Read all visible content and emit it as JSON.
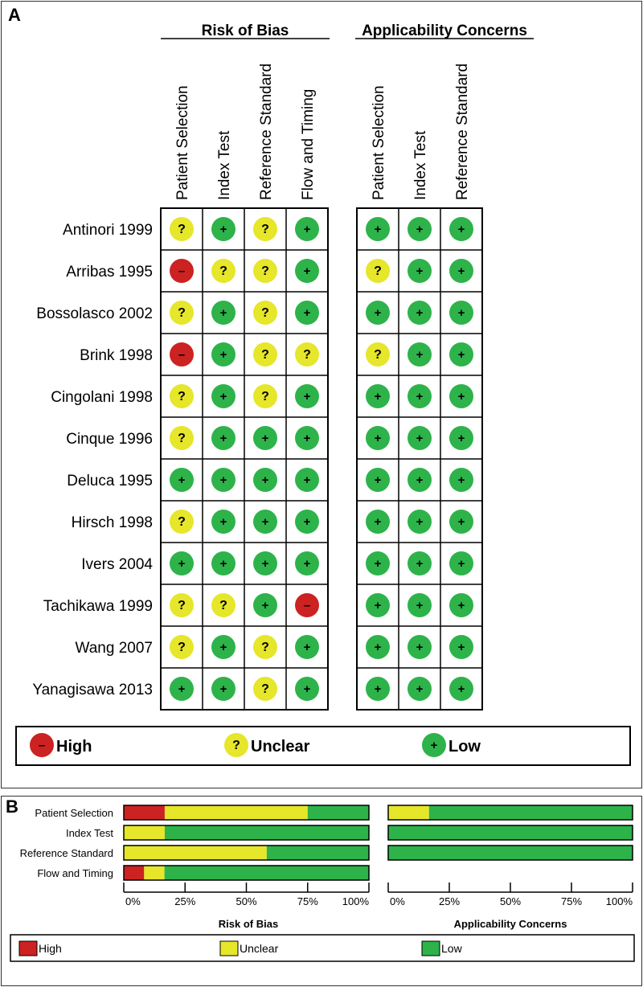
{
  "panel_a": {
    "letter": "A",
    "groups": [
      {
        "title": "Risk of Bias",
        "domains": [
          "Patient Selection",
          "Index Test",
          "Reference Standard",
          "Flow and Timing"
        ]
      },
      {
        "title": "Applicability Concerns",
        "domains": [
          "Patient Selection",
          "Index Test",
          "Reference Standard"
        ]
      }
    ],
    "symbols": {
      "high": "–",
      "unclear": "?",
      "low": "+"
    },
    "legend": [
      {
        "key": "high",
        "label": "High"
      },
      {
        "key": "unclear",
        "label": "Unclear"
      },
      {
        "key": "low",
        "label": "Low"
      }
    ]
  },
  "panel_b": {
    "letter": "B",
    "xticks": [
      "0%",
      "25%",
      "50%",
      "75%",
      "100%"
    ],
    "legend": [
      {
        "key": "high",
        "label": "High"
      },
      {
        "key": "unclear",
        "label": "Unclear"
      },
      {
        "key": "low",
        "label": "Low"
      }
    ]
  },
  "colors": {
    "high": "#cc2222",
    "unclear": "#e6e62a",
    "low": "#2db34a"
  },
  "chart_data": [
    {
      "type": "table",
      "studies": [
        {
          "name": "Antinori 1999",
          "rob": [
            "unclear",
            "low",
            "unclear",
            "low"
          ],
          "app": [
            "low",
            "low",
            "low"
          ]
        },
        {
          "name": "Arribas 1995",
          "rob": [
            "high",
            "unclear",
            "unclear",
            "low"
          ],
          "app": [
            "unclear",
            "low",
            "low"
          ]
        },
        {
          "name": "Bossolasco 2002",
          "rob": [
            "unclear",
            "low",
            "unclear",
            "low"
          ],
          "app": [
            "low",
            "low",
            "low"
          ]
        },
        {
          "name": "Brink 1998",
          "rob": [
            "high",
            "low",
            "unclear",
            "unclear"
          ],
          "app": [
            "unclear",
            "low",
            "low"
          ]
        },
        {
          "name": "Cingolani 1998",
          "rob": [
            "unclear",
            "low",
            "unclear",
            "low"
          ],
          "app": [
            "low",
            "low",
            "low"
          ]
        },
        {
          "name": "Cinque 1996",
          "rob": [
            "unclear",
            "low",
            "low",
            "low"
          ],
          "app": [
            "low",
            "low",
            "low"
          ]
        },
        {
          "name": "Deluca 1995",
          "rob": [
            "low",
            "low",
            "low",
            "low"
          ],
          "app": [
            "low",
            "low",
            "low"
          ]
        },
        {
          "name": "Hirsch 1998",
          "rob": [
            "unclear",
            "low",
            "low",
            "low"
          ],
          "app": [
            "low",
            "low",
            "low"
          ]
        },
        {
          "name": "Ivers 2004",
          "rob": [
            "low",
            "low",
            "low",
            "low"
          ],
          "app": [
            "low",
            "low",
            "low"
          ]
        },
        {
          "name": "Tachikawa 1999",
          "rob": [
            "unclear",
            "unclear",
            "low",
            "high"
          ],
          "app": [
            "low",
            "low",
            "low"
          ]
        },
        {
          "name": "Wang 2007",
          "rob": [
            "unclear",
            "low",
            "unclear",
            "low"
          ],
          "app": [
            "low",
            "low",
            "low"
          ]
        },
        {
          "name": "Yanagisawa 2013",
          "rob": [
            "low",
            "low",
            "unclear",
            "low"
          ],
          "app": [
            "low",
            "low",
            "low"
          ]
        }
      ]
    },
    {
      "type": "bar",
      "stacked": true,
      "orientation": "horizontal",
      "title": "Risk of Bias",
      "categories": [
        "Patient Selection",
        "Index Test",
        "Reference Standard",
        "Flow and Timing"
      ],
      "series": [
        {
          "name": "High",
          "values": [
            16.7,
            0,
            0,
            8.3
          ]
        },
        {
          "name": "Unclear",
          "values": [
            58.3,
            16.7,
            58.3,
            8.3
          ]
        },
        {
          "name": "Low",
          "values": [
            25.0,
            83.3,
            41.7,
            83.3
          ]
        }
      ],
      "xlim": [
        0,
        100
      ]
    },
    {
      "type": "bar",
      "stacked": true,
      "orientation": "horizontal",
      "title": "Applicability Concerns",
      "categories": [
        "Patient Selection",
        "Index Test",
        "Reference Standard"
      ],
      "series": [
        {
          "name": "High",
          "values": [
            0,
            0,
            0
          ]
        },
        {
          "name": "Unclear",
          "values": [
            16.7,
            0,
            0
          ]
        },
        {
          "name": "Low",
          "values": [
            83.3,
            100,
            100
          ]
        }
      ],
      "xlim": [
        0,
        100
      ]
    }
  ]
}
